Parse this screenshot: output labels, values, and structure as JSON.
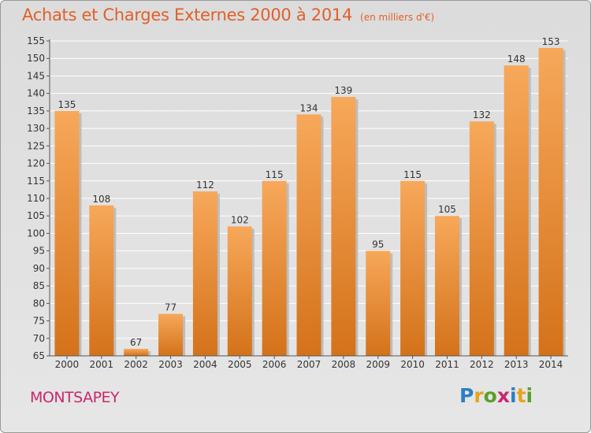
{
  "header": {
    "title": "Achats et Charges Externes 2000 à 2014",
    "subtitle": "(en milliers d'€)"
  },
  "footer": {
    "commune": "MONTSAPEY",
    "brand": "Proxiti"
  },
  "colors": {
    "bar_light": "#f7a85a",
    "bar_dark": "#d4721a",
    "title": "#e0602a",
    "commune": "#c8286e"
  },
  "chart_data": {
    "type": "bar",
    "title": "Achats et Charges Externes 2000 à 2014",
    "subtitle": "(en milliers d'€)",
    "categories": [
      "2000",
      "2001",
      "2002",
      "2003",
      "2004",
      "2005",
      "2006",
      "2007",
      "2008",
      "2009",
      "2010",
      "2011",
      "2012",
      "2013",
      "2014"
    ],
    "values": [
      135,
      108,
      67,
      77,
      112,
      102,
      115,
      134,
      139,
      95,
      115,
      105,
      132,
      148,
      153
    ],
    "xlabel": "",
    "ylabel": "",
    "ylim": [
      65,
      155
    ],
    "yticks": [
      65,
      70,
      75,
      80,
      85,
      90,
      95,
      100,
      105,
      110,
      115,
      120,
      125,
      130,
      135,
      140,
      145,
      150,
      155
    ],
    "grid": "horizontal",
    "legend": "none"
  }
}
